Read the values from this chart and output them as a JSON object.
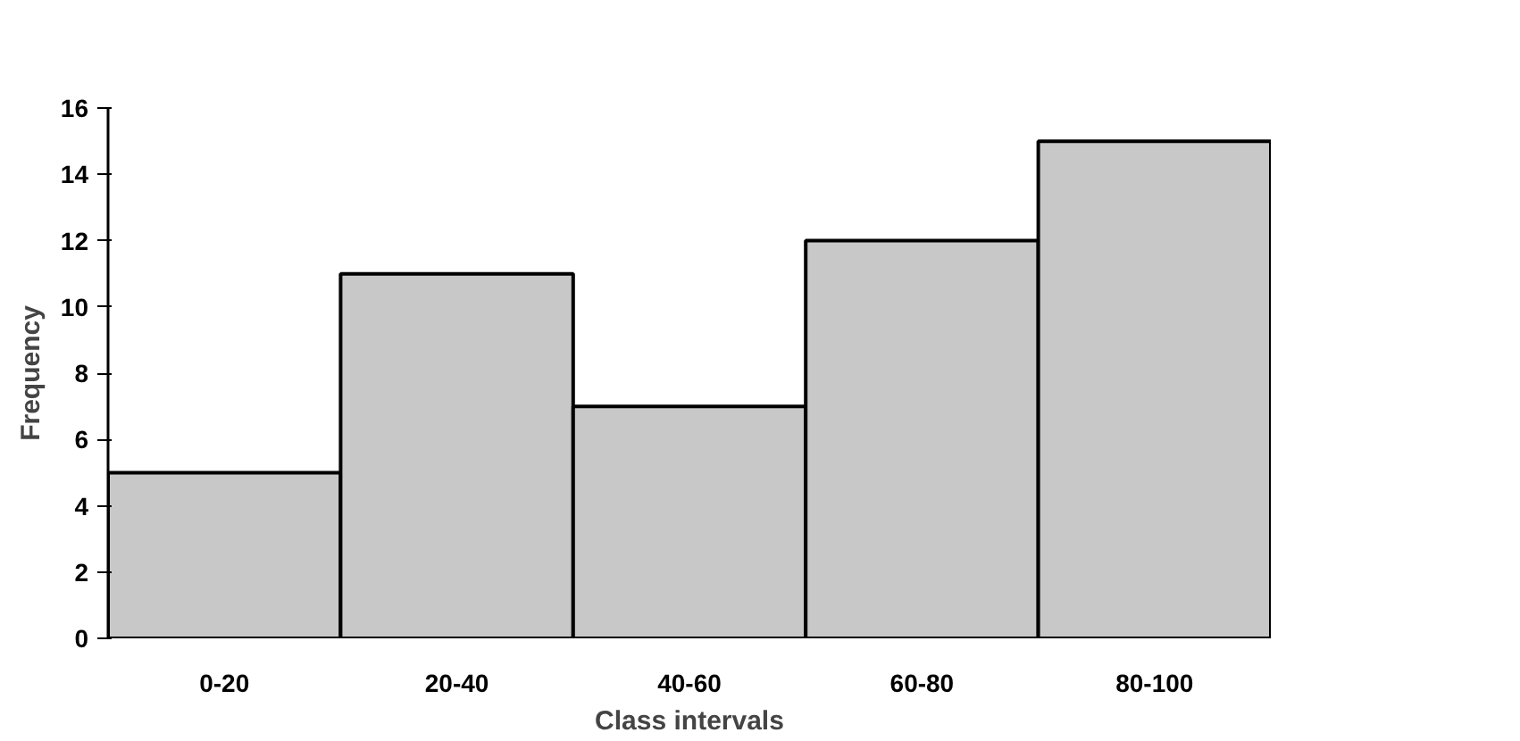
{
  "chart_data": {
    "type": "bar",
    "xlabel": "Class intervals",
    "ylabel": "Frequency",
    "categories": [
      "0-20",
      "20-40",
      "40-60",
      "60-80",
      "80-100"
    ],
    "values": [
      5,
      11,
      7,
      12,
      15
    ],
    "color": "#c8c8c8",
    "ylim": [
      0,
      16
    ],
    "yticks": [
      0,
      2,
      4,
      6,
      8,
      10,
      12,
      14,
      16
    ],
    "grid": false
  }
}
